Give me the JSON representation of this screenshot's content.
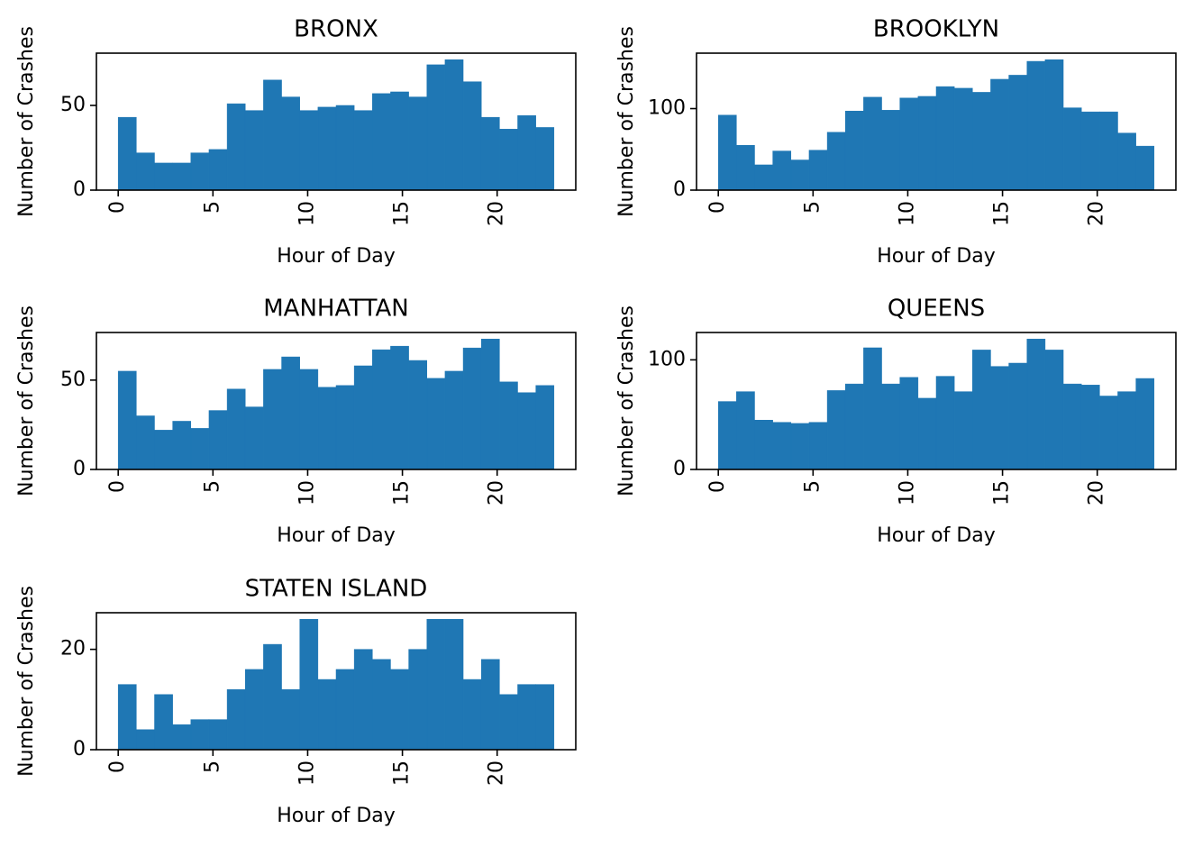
{
  "chart_data": [
    {
      "type": "histogram",
      "title": "BRONX",
      "xlabel": "Hour of Day",
      "ylabel": "Number of Crashes",
      "color": "#1f77b4",
      "bins": [
        0,
        0.958,
        1.917,
        2.875,
        3.833,
        4.792,
        5.75,
        6.708,
        7.667,
        8.625,
        9.583,
        10.542,
        11.5,
        12.458,
        13.417,
        14.375,
        15.333,
        16.292,
        17.25,
        18.208,
        19.167,
        20.125,
        21.083,
        22.042,
        23
      ],
      "values": [
        43,
        22,
        16,
        16,
        22,
        24,
        51,
        47,
        65,
        55,
        47,
        49,
        50,
        47,
        57,
        58,
        55,
        74,
        77,
        64,
        43,
        36,
        44,
        37
      ],
      "xlim": [
        -1.15,
        24.15
      ],
      "xticks": [
        0,
        5,
        10,
        15,
        20
      ],
      "ylim": [
        0,
        80.85
      ],
      "yticks": [
        0,
        50
      ]
    },
    {
      "type": "histogram",
      "title": "BROOKLYN",
      "xlabel": "Hour of Day",
      "ylabel": "Number of Crashes",
      "color": "#1f77b4",
      "bins": [
        0,
        0.958,
        1.917,
        2.875,
        3.833,
        4.792,
        5.75,
        6.708,
        7.667,
        8.625,
        9.583,
        10.542,
        11.5,
        12.458,
        13.417,
        14.375,
        15.333,
        16.292,
        17.25,
        18.208,
        19.167,
        20.125,
        21.083,
        22.042,
        23
      ],
      "values": [
        92,
        55,
        31,
        48,
        37,
        49,
        71,
        97,
        114,
        98,
        113,
        115,
        127,
        125,
        120,
        136,
        141,
        158,
        160,
        101,
        96,
        96,
        70,
        54
      ],
      "xlim": [
        -1.15,
        24.15
      ],
      "xticks": [
        0,
        5,
        10,
        15,
        20
      ],
      "ylim": [
        0,
        168
      ],
      "yticks": [
        0,
        100
      ]
    },
    {
      "type": "histogram",
      "title": "MANHATTAN",
      "xlabel": "Hour of Day",
      "ylabel": "Number of Crashes",
      "color": "#1f77b4",
      "bins": [
        0,
        0.958,
        1.917,
        2.875,
        3.833,
        4.792,
        5.75,
        6.708,
        7.667,
        8.625,
        9.583,
        10.542,
        11.5,
        12.458,
        13.417,
        14.375,
        15.333,
        16.292,
        17.25,
        18.208,
        19.167,
        20.125,
        21.083,
        22.042,
        23
      ],
      "values": [
        55,
        30,
        22,
        27,
        23,
        33,
        45,
        35,
        56,
        63,
        56,
        46,
        47,
        58,
        67,
        69,
        61,
        51,
        55,
        68,
        73,
        49,
        43,
        47
      ],
      "xlim": [
        -1.15,
        24.15
      ],
      "xticks": [
        0,
        5,
        10,
        15,
        20
      ],
      "ylim": [
        0,
        76.65
      ],
      "yticks": [
        0,
        50
      ]
    },
    {
      "type": "histogram",
      "title": "QUEENS",
      "xlabel": "Hour of Day",
      "ylabel": "Number of Crashes",
      "color": "#1f77b4",
      "bins": [
        0,
        0.958,
        1.917,
        2.875,
        3.833,
        4.792,
        5.75,
        6.708,
        7.667,
        8.625,
        9.583,
        10.542,
        11.5,
        12.458,
        13.417,
        14.375,
        15.333,
        16.292,
        17.25,
        18.208,
        19.167,
        20.125,
        21.083,
        22.042,
        23
      ],
      "values": [
        62,
        71,
        45,
        43,
        42,
        43,
        72,
        78,
        111,
        78,
        84,
        65,
        85,
        71,
        109,
        94,
        97,
        119,
        109,
        78,
        77,
        67,
        71,
        83
      ],
      "xlim": [
        -1.15,
        24.15
      ],
      "xticks": [
        0,
        5,
        10,
        15,
        20
      ],
      "ylim": [
        0,
        124.95
      ],
      "yticks": [
        0,
        100
      ]
    },
    {
      "type": "histogram",
      "title": "STATEN ISLAND",
      "xlabel": "Hour of Day",
      "ylabel": "Number of Crashes",
      "color": "#1f77b4",
      "bins": [
        0,
        0.958,
        1.917,
        2.875,
        3.833,
        4.792,
        5.75,
        6.708,
        7.667,
        8.625,
        9.583,
        10.542,
        11.5,
        12.458,
        13.417,
        14.375,
        15.333,
        16.292,
        17.25,
        18.208,
        19.167,
        20.125,
        21.083,
        22.042,
        23
      ],
      "values": [
        13,
        4,
        11,
        5,
        6,
        6,
        12,
        16,
        21,
        12,
        26,
        14,
        16,
        20,
        18,
        16,
        20,
        26,
        26,
        14,
        18,
        11,
        13,
        13
      ],
      "xlim": [
        -1.15,
        24.15
      ],
      "xticks": [
        0,
        5,
        10,
        15,
        20
      ],
      "ylim": [
        0,
        27.3
      ],
      "yticks": [
        0,
        20
      ]
    }
  ]
}
